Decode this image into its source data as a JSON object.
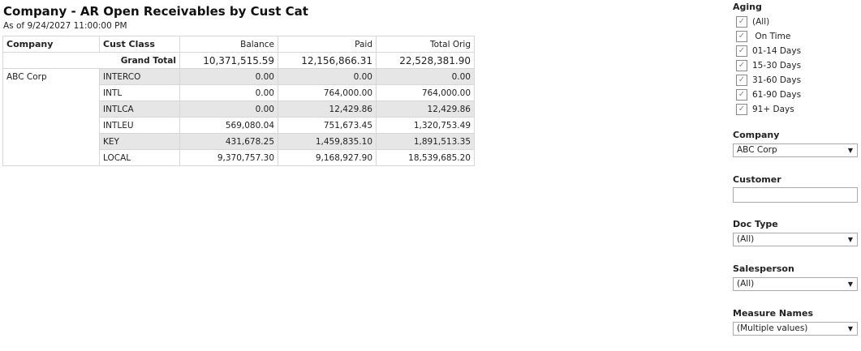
{
  "report": {
    "title": "Company - AR Open Receivables by Cust Cat",
    "subtitle": "As of 9/24/2027 11:00:00 PM"
  },
  "table": {
    "headers": [
      "Company",
      "Cust Class",
      "Balance",
      "Paid",
      "Total Orig"
    ],
    "grand_total": {
      "label": "Grand Total",
      "balance": "10,371,515.59",
      "paid": "12,156,866.31",
      "total_orig": "22,528,381.90"
    },
    "company": "ABC Corp",
    "rows": [
      {
        "cust_class": "INTERCO",
        "balance": "0.00",
        "paid": "0.00",
        "total_orig": "0.00"
      },
      {
        "cust_class": "INTL",
        "balance": "0.00",
        "paid": "764,000.00",
        "total_orig": "764,000.00"
      },
      {
        "cust_class": "INTLCA",
        "balance": "0.00",
        "paid": "12,429.86",
        "total_orig": "12,429.86"
      },
      {
        "cust_class": "INTLEU",
        "balance": "569,080.04",
        "paid": "751,673.45",
        "total_orig": "1,320,753.49"
      },
      {
        "cust_class": "KEY",
        "balance": "431,678.25",
        "paid": "1,459,835.10",
        "total_orig": "1,891,513.35"
      },
      {
        "cust_class": "LOCAL",
        "balance": "9,370,757.30",
        "paid": "9,168,927.90",
        "total_orig": "18,539,685.20"
      }
    ]
  },
  "filters": {
    "aging": {
      "label": "Aging",
      "options": [
        {
          "label": "(All)",
          "checked": true
        },
        {
          "label": " On Time",
          "checked": true
        },
        {
          "label": "01-14 Days",
          "checked": true
        },
        {
          "label": "15-30 Days",
          "checked": true
        },
        {
          "label": "31-60 Days",
          "checked": true
        },
        {
          "label": "61-90 Days",
          "checked": true
        },
        {
          "label": "91+ Days",
          "checked": true
        }
      ]
    },
    "company": {
      "label": "Company",
      "value": "ABC Corp"
    },
    "customer": {
      "label": "Customer",
      "value": ""
    },
    "doc_type": {
      "label": "Doc Type",
      "value": "(All)"
    },
    "salesperson": {
      "label": "Salesperson",
      "value": "(All)"
    },
    "measure_names": {
      "label": "Measure Names",
      "value": "(Multiple values)"
    }
  },
  "icons": {
    "checkbox": "checkmark-icon",
    "dropdown": "caret-down-icon"
  }
}
